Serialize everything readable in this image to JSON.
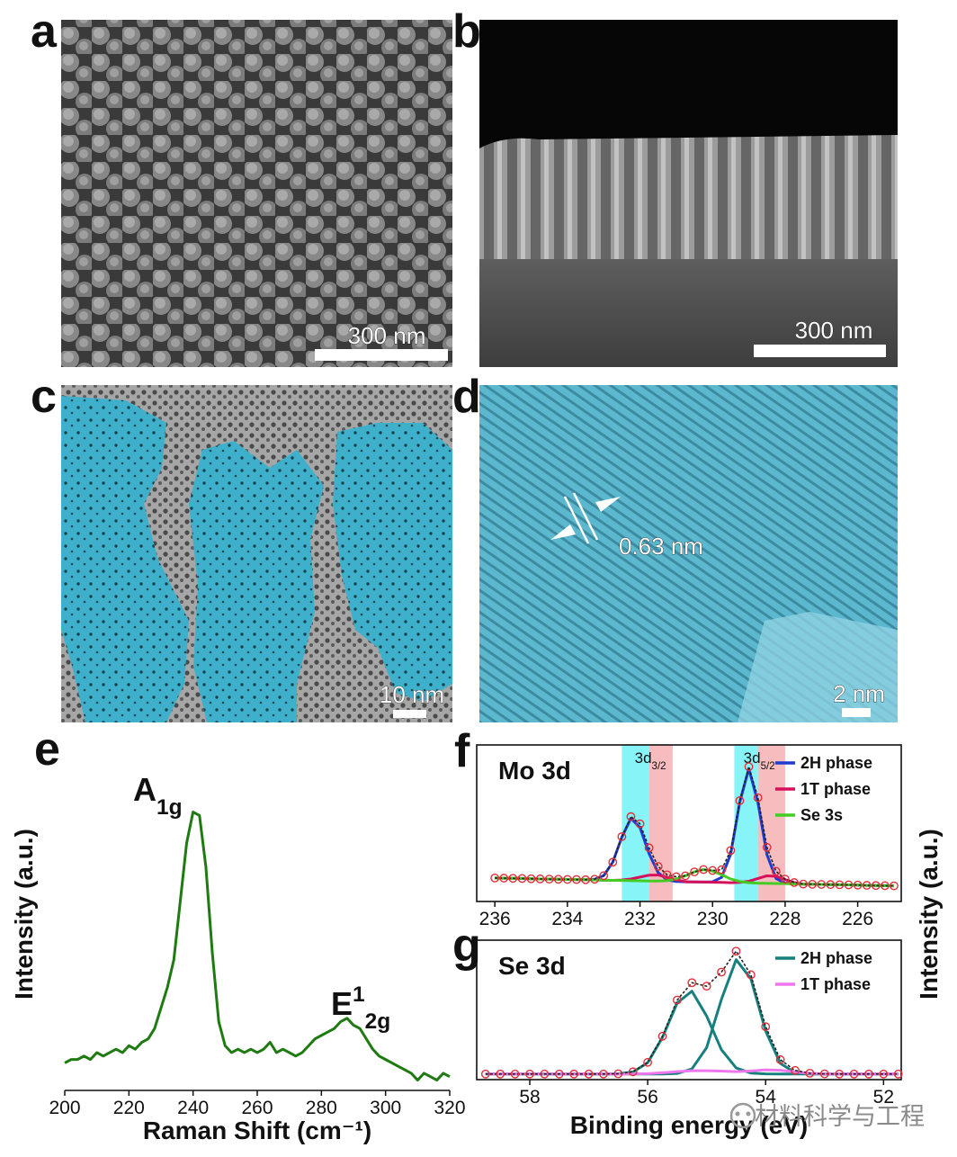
{
  "panels": [
    {
      "label": "a",
      "scale_bar": "300 nm"
    },
    {
      "label": "b",
      "scale_bar": "300 nm"
    },
    {
      "label": "c",
      "scale_bar": "10 nm"
    },
    {
      "label": "d",
      "scale_bar": "2 nm",
      "annotation": "0.63 nm"
    }
  ],
  "watermark": "材料科学与工程",
  "chart_data": [
    {
      "type": "line",
      "panel_label": "e",
      "x_label": "Raman Shift (cm⁻¹)",
      "y_label": "Intensity (a.u.)",
      "x": [
        200,
        202,
        204,
        206,
        208,
        210,
        212,
        214,
        216,
        218,
        220,
        222,
        224,
        226,
        228,
        230,
        232,
        234,
        236,
        238,
        240,
        242,
        244,
        246,
        248,
        250,
        252,
        254,
        256,
        258,
        260,
        262,
        264,
        266,
        268,
        270,
        272,
        274,
        276,
        278,
        280,
        282,
        284,
        286,
        288,
        290,
        292,
        294,
        296,
        298,
        300,
        302,
        304,
        306,
        308,
        310,
        312,
        314,
        316,
        318,
        320
      ],
      "series": [
        {
          "color": "#1f7a12",
          "values": [
            0.08,
            0.09,
            0.09,
            0.1,
            0.09,
            0.11,
            0.1,
            0.11,
            0.12,
            0.11,
            0.13,
            0.12,
            0.14,
            0.15,
            0.18,
            0.24,
            0.3,
            0.38,
            0.55,
            0.72,
            0.81,
            0.8,
            0.65,
            0.4,
            0.2,
            0.13,
            0.11,
            0.12,
            0.11,
            0.12,
            0.11,
            0.12,
            0.14,
            0.11,
            0.12,
            0.11,
            0.1,
            0.11,
            0.13,
            0.15,
            0.16,
            0.17,
            0.18,
            0.2,
            0.21,
            0.19,
            0.18,
            0.15,
            0.12,
            0.1,
            0.09,
            0.08,
            0.07,
            0.06,
            0.05,
            0.03,
            0.05,
            0.04,
            0.03,
            0.05,
            0.04
          ]
        }
      ],
      "annotations": [
        {
          "base": "A",
          "sub": "1g"
        },
        {
          "base": "E",
          "sup": "1",
          "sub": "2g"
        }
      ],
      "xlim": [
        200,
        320
      ],
      "xticks": [
        200,
        220,
        240,
        260,
        280,
        300,
        320
      ],
      "ylim": [
        0,
        1
      ]
    },
    {
      "type": "line",
      "panel_label": "f",
      "title": "Mo 3d",
      "legend": "upper right",
      "x": [
        236,
        235.75,
        235.5,
        235.25,
        235,
        234.75,
        234.5,
        234.25,
        234,
        233.75,
        233.5,
        233.25,
        233,
        232.75,
        232.5,
        232.25,
        232,
        231.75,
        231.5,
        231.25,
        231,
        230.75,
        230.5,
        230.25,
        230,
        229.75,
        229.5,
        229.25,
        229,
        228.75,
        228.5,
        228.25,
        228,
        227.75,
        227.5,
        227.25,
        227,
        226.75,
        226.5,
        226.25,
        226,
        225.75,
        225.5,
        225.25,
        225
      ],
      "bands": [
        {
          "from": 232.5,
          "to": 231.75,
          "color": "#5ff0f5"
        },
        {
          "from": 231.75,
          "to": 231.1,
          "color": "#f4a5a8"
        },
        {
          "from": 229.4,
          "to": 228.75,
          "color": "#5ff0f5"
        },
        {
          "from": 228.75,
          "to": 228.0,
          "color": "#f4a5a8"
        }
      ],
      "peak_labels": [
        {
          "base": "3d",
          "sub": "3/2"
        },
        {
          "base": "3d",
          "sub": "5/2"
        }
      ],
      "series": [
        {
          "name": "2H phase",
          "color": "#1f3ccf",
          "values": [
            0.15,
            0.149,
            0.148,
            0.147,
            0.145,
            0.144,
            0.143,
            0.142,
            0.141,
            0.14,
            0.139,
            0.142,
            0.165,
            0.251,
            0.411,
            0.531,
            0.472,
            0.306,
            0.184,
            0.138,
            0.128,
            0.126,
            0.125,
            0.124,
            0.126,
            0.154,
            0.302,
            0.635,
            0.848,
            0.633,
            0.298,
            0.147,
            0.117,
            0.112,
            0.111,
            0.11,
            0.109,
            0.108,
            0.107,
            0.106,
            0.105,
            0.103,
            0.102,
            0.101,
            0.1
          ]
        },
        {
          "name": "1T phase",
          "color": "#d6105a",
          "values": [
            0.15,
            0.149,
            0.148,
            0.147,
            0.145,
            0.144,
            0.143,
            0.142,
            0.141,
            0.14,
            0.139,
            0.138,
            0.136,
            0.135,
            0.137,
            0.144,
            0.156,
            0.168,
            0.169,
            0.155,
            0.14,
            0.126,
            0.125,
            0.124,
            0.123,
            0.122,
            0.12,
            0.122,
            0.129,
            0.147,
            0.164,
            0.161,
            0.14,
            0.121,
            0.111,
            0.11,
            0.109,
            0.108,
            0.107,
            0.106,
            0.105,
            0.103,
            0.102,
            0.101,
            0.1
          ]
        },
        {
          "name": "Se 3s",
          "color": "#44cc22",
          "values": [
            0.15,
            0.149,
            0.148,
            0.147,
            0.145,
            0.144,
            0.143,
            0.142,
            0.141,
            0.14,
            0.139,
            0.138,
            0.136,
            0.135,
            0.134,
            0.133,
            0.132,
            0.131,
            0.131,
            0.133,
            0.144,
            0.164,
            0.189,
            0.204,
            0.195,
            0.171,
            0.144,
            0.128,
            0.12,
            0.117,
            0.116,
            0.115,
            0.114,
            0.112,
            0.111,
            0.11,
            0.109,
            0.108,
            0.107,
            0.106,
            0.105,
            0.103,
            0.102,
            0.101,
            0.1
          ]
        },
        {
          "color": "#e0303a",
          "marker": "open-circle",
          "line_color": "#222222",
          "values": [
            0.15,
            0.149,
            0.148,
            0.147,
            0.145,
            0.144,
            0.143,
            0.142,
            0.141,
            0.14,
            0.139,
            0.142,
            0.165,
            0.251,
            0.414,
            0.542,
            0.496,
            0.343,
            0.224,
            0.17,
            0.158,
            0.164,
            0.189,
            0.204,
            0.198,
            0.203,
            0.326,
            0.644,
            0.861,
            0.663,
            0.346,
            0.193,
            0.143,
            0.121,
            0.111,
            0.11,
            0.109,
            0.108,
            0.107,
            0.106,
            0.105,
            0.103,
            0.102,
            0.101,
            0.1
          ]
        }
      ],
      "xlim": [
        236.5,
        224.8
      ],
      "xticks": [
        236,
        234,
        232,
        230,
        228,
        226
      ],
      "ylim": [
        0,
        1
      ]
    },
    {
      "type": "line",
      "panel_label": "g",
      "title": "Se 3d",
      "legend": "upper right",
      "x_label": "Binding energy (eV)",
      "y_label": "Intensity (a.u.)",
      "x": [
        58.75,
        58.5,
        58.25,
        58,
        57.75,
        57.5,
        57.25,
        57,
        56.75,
        56.5,
        56.25,
        56,
        55.75,
        55.5,
        55.25,
        55,
        54.75,
        54.5,
        54.25,
        54,
        53.75,
        53.5,
        53.25,
        53,
        52.75,
        52.5,
        52.25,
        52,
        51.75
      ],
      "series": [
        {
          "name": "2H phase",
          "color": "#17807f",
          "values": [
            0.04,
            0.04,
            0.04,
            0.04,
            0.04,
            0.04,
            0.04,
            0.04,
            0.04,
            0.042,
            0.055,
            0.121,
            0.302,
            0.55,
            0.634,
            0.456,
            0.215,
            0.084,
            0.047,
            0.041,
            0.04,
            0.04,
            0.04,
            0.04,
            0.04,
            0.04,
            0.04,
            0.04,
            0.04
          ]
        },
        {
          "color": "#17807f",
          "values": [
            0.04,
            0.04,
            0.04,
            0.04,
            0.04,
            0.04,
            0.04,
            0.04,
            0.04,
            0.04,
            0.04,
            0.04,
            0.04,
            0.044,
            0.077,
            0.23,
            0.575,
            0.86,
            0.723,
            0.349,
            0.116,
            0.05,
            0.041,
            0.04,
            0.04,
            0.04,
            0.04,
            0.04,
            0.04
          ]
        },
        {
          "name": "1T phase",
          "color": "#ee77ee",
          "values": [
            0.04,
            0.04,
            0.04,
            0.04,
            0.04,
            0.04,
            0.04,
            0.04,
            0.04,
            0.04,
            0.041,
            0.043,
            0.049,
            0.057,
            0.064,
            0.064,
            0.061,
            0.057,
            0.062,
            0.07,
            0.067,
            0.056,
            0.045,
            0.041,
            0.04,
            0.04,
            0.04,
            0.04,
            0.04
          ]
        },
        {
          "color": "#e0303a",
          "marker": "open-circle",
          "line_color": "#222222",
          "values": [
            0.04,
            0.04,
            0.04,
            0.04,
            0.04,
            0.04,
            0.04,
            0.04,
            0.04,
            0.042,
            0.056,
            0.124,
            0.311,
            0.571,
            0.695,
            0.67,
            0.771,
            0.921,
            0.752,
            0.38,
            0.143,
            0.066,
            0.046,
            0.041,
            0.04,
            0.04,
            0.04,
            0.04,
            0.04
          ]
        }
      ],
      "xlim": [
        58.9,
        51.7
      ],
      "xticks": [
        58,
        56,
        54,
        52
      ],
      "ylim": [
        0,
        1
      ]
    }
  ]
}
